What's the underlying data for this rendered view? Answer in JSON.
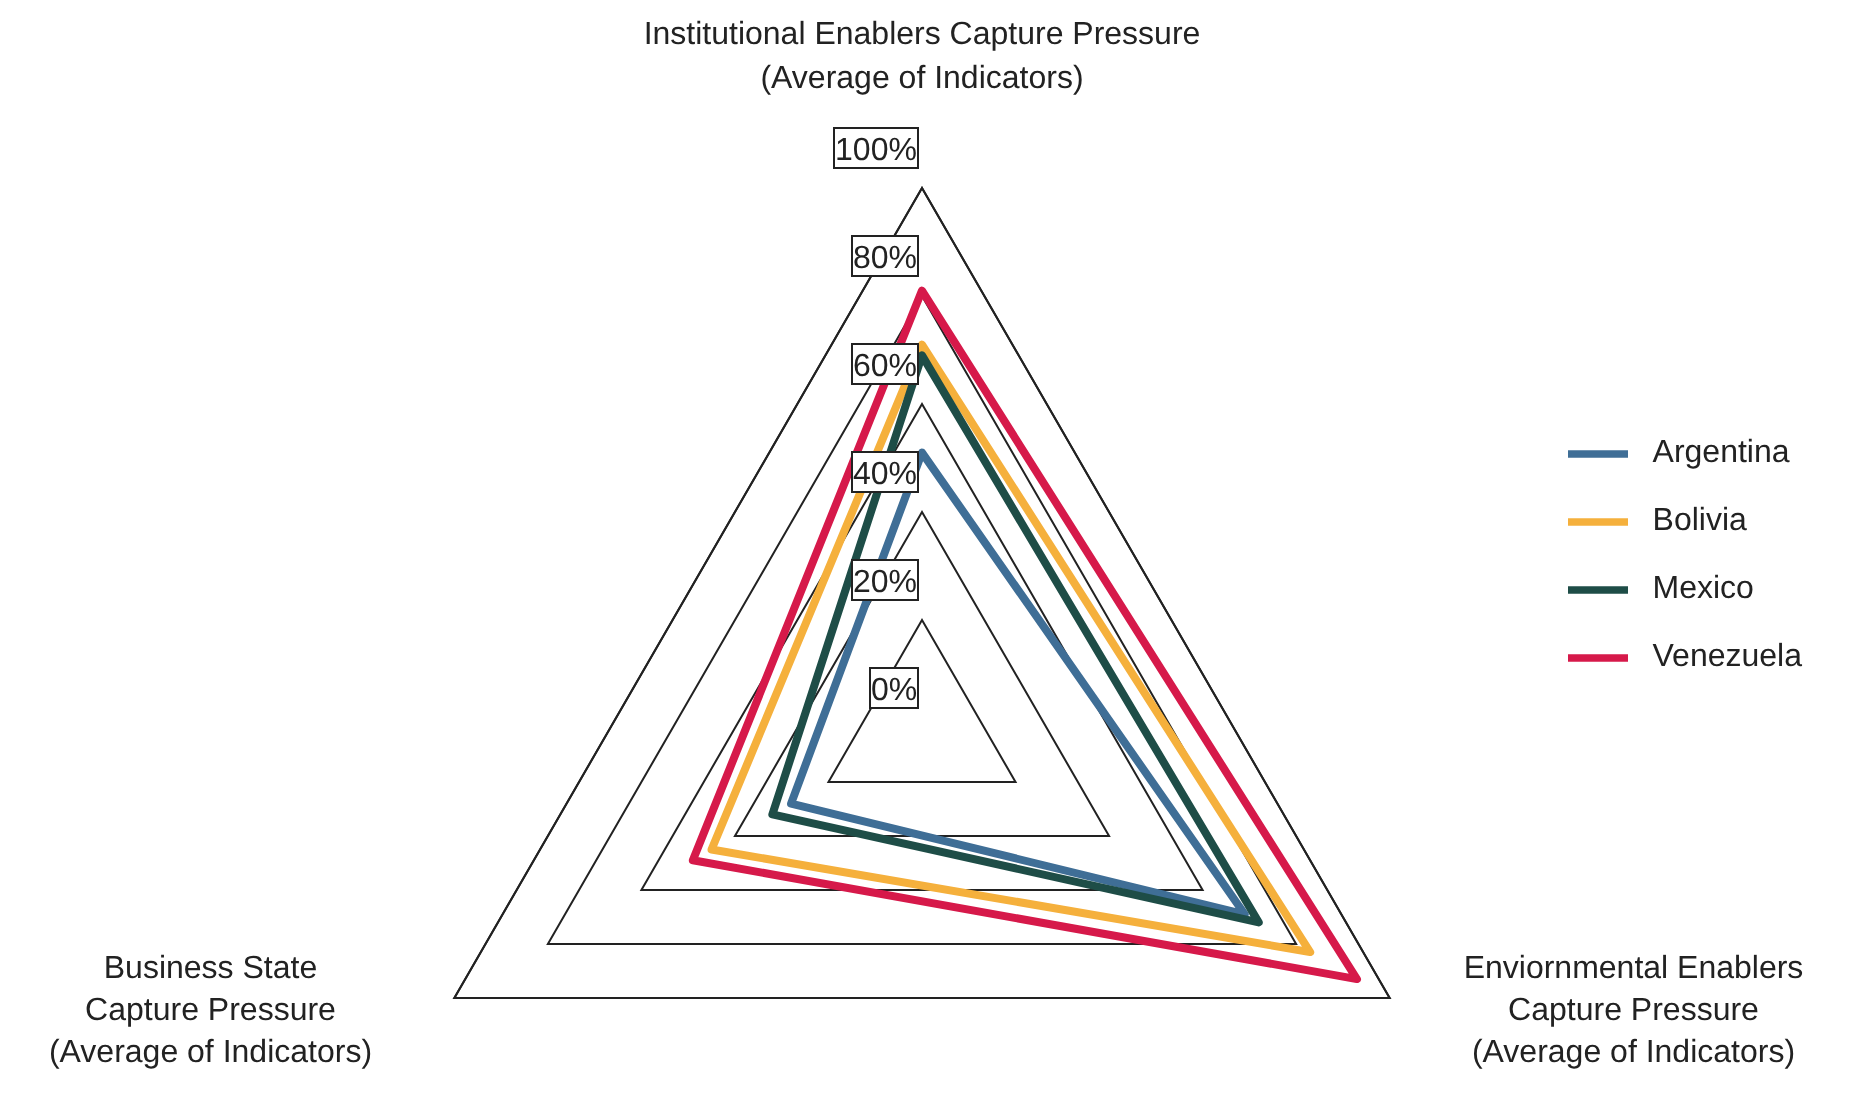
{
  "chart_data": {
    "type": "radar",
    "categories": [
      "Institutional Enablers Capture Pressure\n(Average of Indicators)",
      "Enviornmental Enablers\nCapture Pressure\n(Average of Indicators)",
      "Business State\nCapture Pressure\n(Average of Indicators)"
    ],
    "series": [
      {
        "name": "Argentina",
        "color": "#3f6e96",
        "values": [
          51,
          69,
          28
        ]
      },
      {
        "name": "Bolivia",
        "color": "#f5b03c",
        "values": [
          71,
          83,
          45
        ]
      },
      {
        "name": "Mexico",
        "color": "#1e4d47",
        "values": [
          69,
          72,
          32
        ]
      },
      {
        "name": "Venezuela",
        "color": "#d6194a",
        "values": [
          81,
          93,
          49
        ]
      }
    ],
    "ylim": [
      0,
      100
    ],
    "yticks": [
      {
        "value": 0,
        "label": "0%"
      },
      {
        "value": 20,
        "label": "20%"
      },
      {
        "value": 40,
        "label": "40%"
      },
      {
        "value": 60,
        "label": "60%"
      },
      {
        "value": 80,
        "label": "80%"
      },
      {
        "value": 100,
        "label": "100%"
      }
    ],
    "grid": true,
    "legend": "right",
    "marker": "none",
    "line_style": "solid"
  }
}
